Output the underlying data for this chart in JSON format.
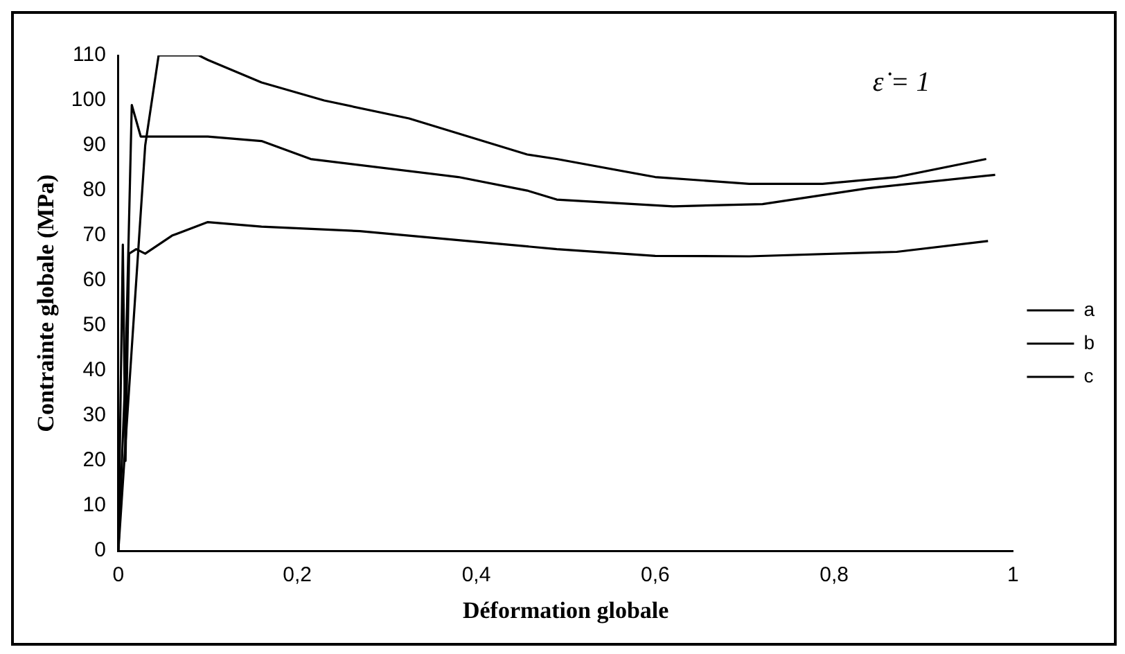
{
  "chart_data": {
    "type": "line",
    "xlabel": "Déformation globale",
    "ylabel": "Contrainte globale (MPa)",
    "annotations": [
      "ε̇ = 1"
    ],
    "xlim": [
      0,
      1
    ],
    "xticks": [
      0,
      {
        "value": 0.2,
        "label": "0,2"
      },
      {
        "value": 0.4,
        "label": "0,4"
      },
      {
        "value": 0.6,
        "label": "0,6"
      },
      {
        "value": 0.8,
        "label": "0,8"
      },
      1
    ],
    "ylim": [
      0,
      110
    ],
    "yticks": [
      0,
      10,
      20,
      30,
      40,
      50,
      60,
      70,
      80,
      90,
      100,
      110
    ],
    "grid": false,
    "legend": "right",
    "marker": "none",
    "line_style": "solid",
    "series": [
      {
        "name": "a",
        "color": "#000000",
        "x": [
          0,
          0.01,
          0.02,
          0.03,
          0.045,
          0.06,
          0.09,
          0.1,
          0.16,
          0.23,
          0.325,
          0.457,
          0.49,
          0.6,
          0.705,
          0.787,
          0.87,
          0.97
        ],
        "values": [
          0,
          30,
          60,
          90,
          110,
          110,
          110,
          109,
          104,
          100,
          96,
          88,
          87,
          83,
          81.5,
          81.5,
          83,
          87
        ]
      },
      {
        "name": "b",
        "color": "#000000",
        "x": [
          0,
          0.008,
          0.015,
          0.025,
          0.05,
          0.1,
          0.16,
          0.215,
          0.38,
          0.457,
          0.49,
          0.62,
          0.72,
          0.837,
          0.98
        ],
        "values": [
          0,
          40,
          99,
          92,
          92,
          92,
          91,
          87,
          83,
          80,
          78,
          76.5,
          77,
          80.5,
          83.5
        ]
      },
      {
        "name": "c",
        "color": "#000000",
        "x": [
          0,
          0.005,
          0.008,
          0.012,
          0.02,
          0.03,
          0.06,
          0.1,
          0.16,
          0.27,
          0.38,
          0.49,
          0.6,
          0.705,
          0.87,
          0.972
        ],
        "values": [
          0,
          68,
          20,
          66,
          67,
          66,
          70,
          73,
          72,
          71,
          69,
          67,
          65.5,
          65.4,
          66.4,
          68.8
        ]
      }
    ]
  }
}
